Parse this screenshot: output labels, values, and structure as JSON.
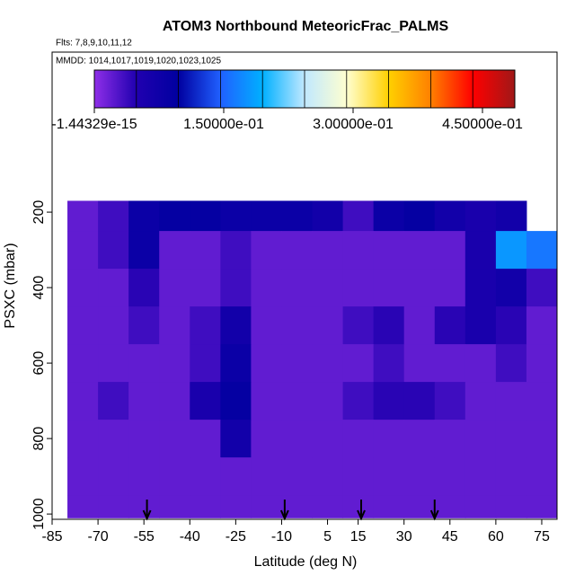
{
  "chart_data": {
    "type": "heatmap",
    "title": "ATOM3 Northbound MeteoricFrac_PALMS",
    "subtitle": "Flts: 7,8,9,10,11,12",
    "annotation": "MMDD: 1014,1017,1019,1020,1023,1025",
    "x_label": "Latitude (deg N)",
    "y_label": "PSXC (mbar)",
    "xlim": [
      -85,
      80
    ],
    "xticks": [
      -85,
      -70,
      -55,
      -40,
      -25,
      -10,
      5,
      15,
      30,
      45,
      60,
      75
    ],
    "ylim": [
      1014,
      -224
    ],
    "yticks": [
      200,
      400,
      600,
      800,
      1000
    ],
    "x_bins": [
      -80,
      -70,
      -60,
      -50,
      -40,
      -30,
      -20,
      -10,
      0,
      10,
      20,
      30,
      40,
      50,
      60,
      70,
      80
    ],
    "y_bins": [
      170,
      250,
      350,
      450,
      550,
      650,
      750,
      850,
      950,
      1010
    ],
    "z": [
      [
        0.02,
        0.035,
        0.08,
        0.09,
        0.09,
        0.08,
        0.08,
        0.08,
        0.07,
        0.035,
        0.08,
        0.09,
        0.07,
        0.06,
        0.07,
        null
      ],
      [
        0.02,
        0.035,
        0.08,
        0.02,
        0.02,
        0.035,
        0.02,
        0.02,
        0.02,
        0.02,
        0.02,
        0.02,
        0.02,
        0.06,
        0.18,
        0.16
      ],
      [
        0.02,
        0.02,
        0.045,
        0.02,
        0.02,
        0.035,
        0.02,
        0.02,
        0.02,
        0.02,
        0.02,
        0.02,
        0.02,
        0.06,
        0.07,
        0.035
      ],
      [
        0.02,
        0.02,
        0.035,
        0.02,
        0.035,
        0.07,
        0.02,
        0.02,
        0.02,
        0.035,
        0.045,
        0.02,
        0.045,
        0.06,
        0.045,
        0.02
      ],
      [
        0.02,
        0.02,
        0.02,
        0.02,
        0.035,
        0.08,
        0.02,
        0.02,
        0.02,
        0.02,
        0.035,
        0.02,
        0.02,
        0.02,
        0.035,
        0.02
      ],
      [
        0.02,
        0.035,
        0.02,
        0.02,
        0.06,
        0.09,
        0.02,
        0.02,
        0.02,
        0.035,
        0.045,
        0.045,
        0.035,
        0.02,
        0.02,
        0.02
      ],
      [
        0.02,
        0.02,
        0.02,
        0.02,
        0.02,
        0.07,
        0.02,
        0.02,
        0.02,
        0.02,
        0.02,
        0.02,
        0.02,
        0.02,
        0.02,
        0.02
      ],
      [
        0.02,
        0.02,
        0.02,
        0.02,
        0.02,
        0.02,
        0.02,
        0.02,
        0.02,
        0.02,
        0.02,
        0.02,
        0.02,
        0.02,
        0.02,
        0.02
      ],
      [
        0.02,
        0.02,
        0.02,
        0.02,
        0.02,
        0.02,
        0.02,
        0.02,
        0.02,
        0.02,
        0.02,
        0.02,
        0.02,
        0.02,
        0.02,
        0.02
      ]
    ],
    "markers_x": [
      -54,
      -9,
      16,
      40
    ],
    "colorbar": {
      "lim": [
        -1.44329e-15,
        0.4875
      ],
      "ticks": [
        {
          "value": -1.44329e-15,
          "label": "-1.44329e-15"
        },
        {
          "value": 0.15,
          "label": "1.50000e-01"
        },
        {
          "value": 0.3,
          "label": "3.00000e-01"
        },
        {
          "value": 0.45,
          "label": "4.50000e-01"
        }
      ],
      "colors": [
        "#8f2fe8",
        "#2000b0",
        "#0000a0",
        "#2060ff",
        "#00b0ff",
        "#c0e8ff",
        "#ffffd0",
        "#ffd000",
        "#ff8000",
        "#ff0000",
        "#a01818"
      ]
    }
  }
}
